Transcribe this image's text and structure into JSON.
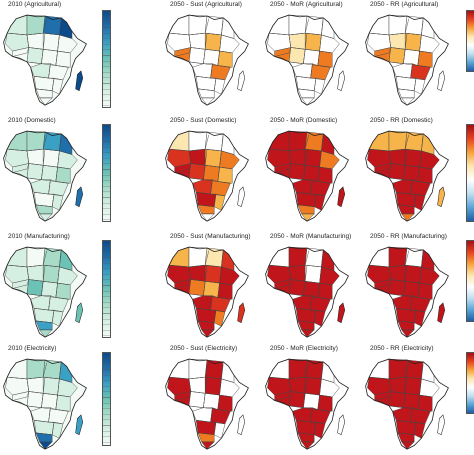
{
  "panels": [
    {
      "row": 0,
      "col": 0,
      "title": "2010 (Agricultural)"
    },
    {
      "row": 0,
      "col": 1,
      "title": "2050 - Sust (Agricultural)"
    },
    {
      "row": 0,
      "col": 2,
      "title": "2050 - MoR (Agricultural)"
    },
    {
      "row": 0,
      "col": 3,
      "title": "2050 - RR (Agricultural)"
    },
    {
      "row": 1,
      "col": 0,
      "title": "2010 (Domestic)"
    },
    {
      "row": 1,
      "col": 1,
      "title": "2050 - Sust (Domestic)"
    },
    {
      "row": 1,
      "col": 2,
      "title": "2050 - MoR (Domestic)"
    },
    {
      "row": 1,
      "col": 3,
      "title": "2050 - RR (Domestic)"
    },
    {
      "row": 2,
      "col": 0,
      "title": "2010 (Manufacturing)"
    },
    {
      "row": 2,
      "col": 1,
      "title": "2050 - Sust (Manufacturing)"
    },
    {
      "row": 2,
      "col": 2,
      "title": "2050 - MoR (Manufacturing)"
    },
    {
      "row": 2,
      "col": 3,
      "title": "2050 - RR (Manufacturing)"
    },
    {
      "row": 3,
      "col": 0,
      "title": "2010 (Electricity)"
    },
    {
      "row": 3,
      "col": 1,
      "title": "2050 - Sust (Electricity)"
    },
    {
      "row": 3,
      "col": 2,
      "title": "2050 - MoR (Electricity)"
    },
    {
      "row": 3,
      "col": 3,
      "title": "2050 - RR (Electricity)"
    }
  ],
  "colors": {
    "blue_scale": [
      "#f4fbf6",
      "#d6efe3",
      "#a9dcc8",
      "#6cc3b5",
      "#3aa0c4",
      "#1f6fad",
      "#0b4a8b"
    ],
    "red_scale": [
      "#ffffff",
      "#fde7b0",
      "#f6b44a",
      "#ee7b22",
      "#d93320",
      "#c0151b",
      "#a50f15"
    ],
    "diverging_bar": [
      "#a50f15",
      "#e8431f",
      "#f6a33a",
      "#fde7b0",
      "#ffffff",
      "#bfe0f0",
      "#5aa6d6",
      "#1b5fa8"
    ],
    "border": "#333333"
  }
}
